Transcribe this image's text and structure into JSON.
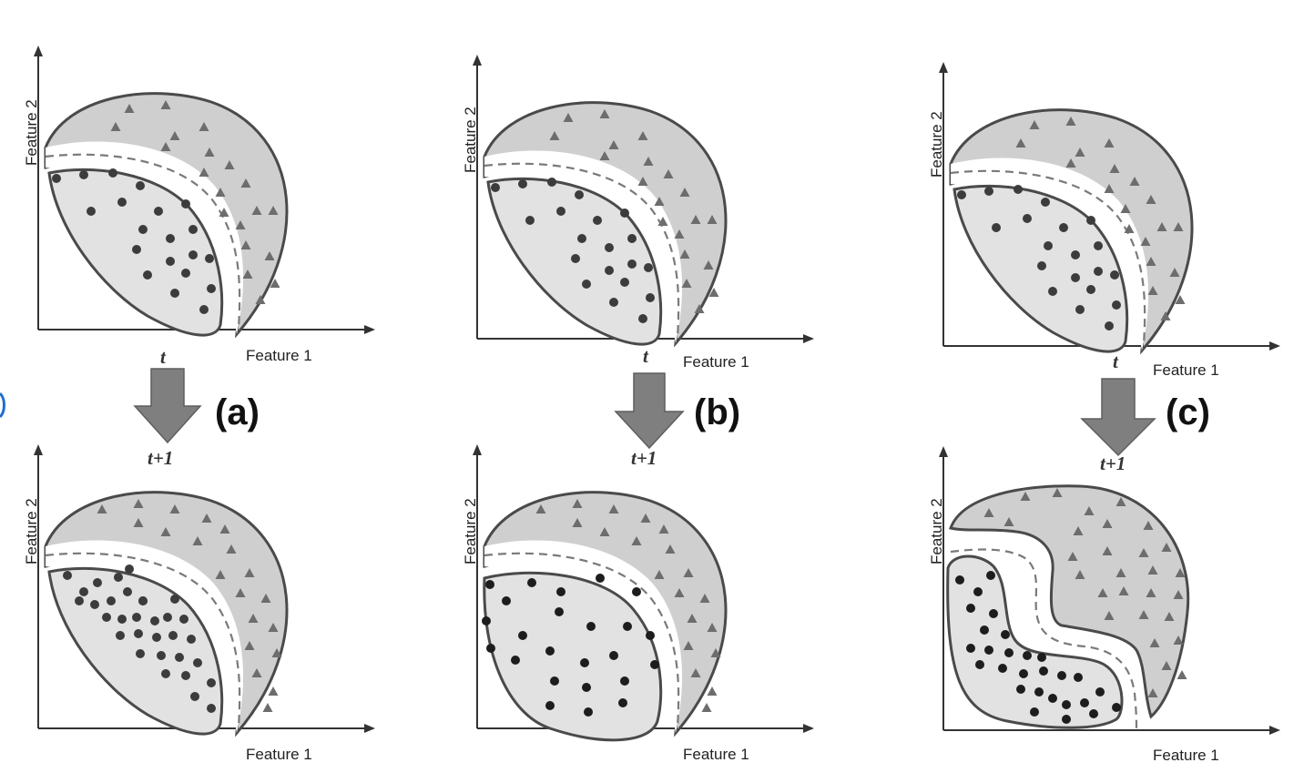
{
  "axes": {
    "x_label": "Feature 1",
    "y_label": "Feature 2"
  },
  "time": {
    "before": "t",
    "after": "t+1"
  },
  "panels": [
    {
      "label": "(a)"
    },
    {
      "label": "(b)"
    },
    {
      "label": "(c)"
    }
  ],
  "colors": {
    "outer_region": "#cfcfcf",
    "inner_region": "#e2e2e2",
    "outline": "#4a4a4a",
    "arrow": "#7f7f7f"
  },
  "legend_symbols": {
    "class_1": "circle",
    "class_2": "triangle"
  }
}
